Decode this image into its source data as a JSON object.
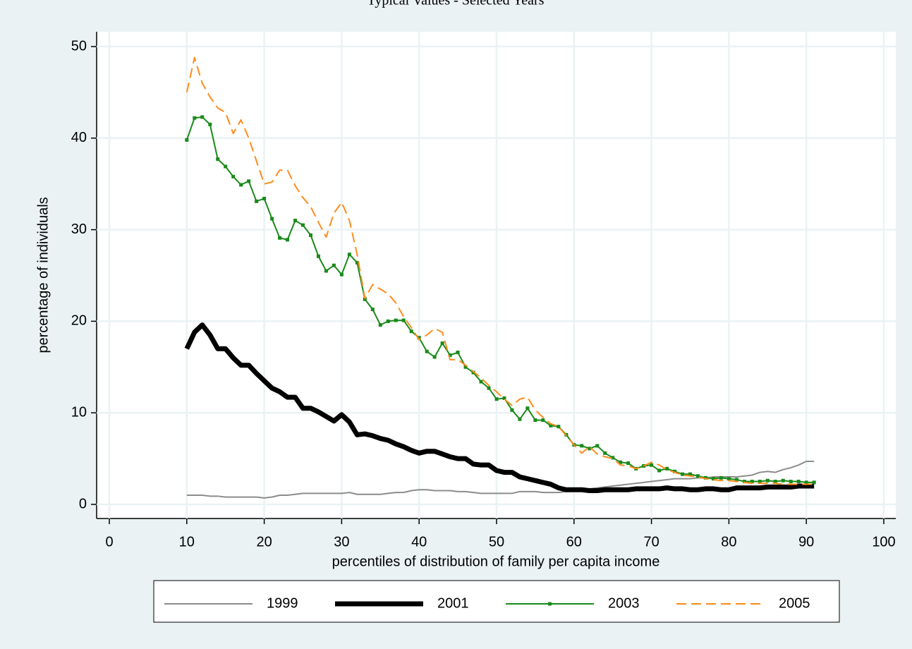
{
  "chart_data": {
    "type": "line",
    "title": "Typical Values - Selected Years",
    "xlabel": "percentiles of distribution of family per capita income",
    "ylabel": "percentage of individuals",
    "x": [
      10,
      11,
      12,
      13,
      14,
      15,
      16,
      17,
      18,
      19,
      20,
      21,
      22,
      23,
      24,
      25,
      26,
      27,
      28,
      29,
      30,
      31,
      32,
      33,
      34,
      35,
      36,
      37,
      38,
      39,
      40,
      41,
      42,
      43,
      44,
      45,
      46,
      47,
      48,
      49,
      50,
      51,
      52,
      53,
      54,
      55,
      56,
      57,
      58,
      59,
      60,
      61,
      62,
      63,
      64,
      65,
      66,
      67,
      68,
      69,
      70,
      71,
      72,
      73,
      74,
      75,
      76,
      77,
      78,
      79,
      80,
      81,
      82,
      83,
      84,
      85,
      86,
      87,
      88,
      89,
      90,
      91
    ],
    "series": [
      {
        "name": "1999",
        "color": "#8c8c8c",
        "width": 2,
        "dash": false,
        "markers": false,
        "values": [
          1.0,
          1.0,
          1.0,
          0.9,
          0.9,
          0.8,
          0.8,
          0.8,
          0.8,
          0.8,
          0.7,
          0.8,
          1.0,
          1.0,
          1.1,
          1.2,
          1.2,
          1.2,
          1.2,
          1.2,
          1.2,
          1.3,
          1.1,
          1.1,
          1.1,
          1.1,
          1.2,
          1.3,
          1.3,
          1.5,
          1.6,
          1.6,
          1.5,
          1.5,
          1.5,
          1.4,
          1.4,
          1.3,
          1.2,
          1.2,
          1.2,
          1.2,
          1.2,
          1.4,
          1.4,
          1.4,
          1.3,
          1.3,
          1.3,
          1.4,
          1.5,
          1.6,
          1.7,
          1.8,
          1.9,
          2.0,
          2.1,
          2.2,
          2.3,
          2.4,
          2.5,
          2.6,
          2.7,
          2.8,
          2.8,
          2.8,
          2.9,
          2.9,
          3.0,
          3.0,
          3.0,
          3.0,
          3.1,
          3.2,
          3.5,
          3.6,
          3.5,
          3.8,
          4.0,
          4.3,
          4.7,
          4.7
        ]
      },
      {
        "name": "2001",
        "color": "#000000",
        "width": 7,
        "dash": false,
        "markers": false,
        "values": [
          17.0,
          18.8,
          19.6,
          18.5,
          17.0,
          17.0,
          16.0,
          15.2,
          15.2,
          14.3,
          13.5,
          12.7,
          12.3,
          11.7,
          11.7,
          10.5,
          10.5,
          10.1,
          9.6,
          9.1,
          9.8,
          9.0,
          7.6,
          7.7,
          7.5,
          7.2,
          7.0,
          6.6,
          6.3,
          5.9,
          5.6,
          5.8,
          5.8,
          5.5,
          5.2,
          5.0,
          5.0,
          4.4,
          4.3,
          4.3,
          3.7,
          3.5,
          3.5,
          3.0,
          2.8,
          2.6,
          2.4,
          2.2,
          1.8,
          1.6,
          1.6,
          1.6,
          1.5,
          1.5,
          1.6,
          1.6,
          1.6,
          1.6,
          1.7,
          1.7,
          1.7,
          1.7,
          1.8,
          1.7,
          1.7,
          1.6,
          1.6,
          1.7,
          1.7,
          1.6,
          1.6,
          1.8,
          1.8,
          1.8,
          1.8,
          1.9,
          1.9,
          1.9,
          1.9,
          2.0,
          2.0,
          2.0
        ]
      },
      {
        "name": "2003",
        "color": "#1a8a1a",
        "width": 2,
        "dash": false,
        "markers": true,
        "values": [
          39.8,
          42.2,
          42.3,
          41.5,
          37.7,
          36.9,
          35.8,
          34.9,
          35.3,
          33.1,
          33.4,
          31.2,
          29.1,
          28.9,
          31.0,
          30.5,
          29.4,
          27.1,
          25.5,
          26.1,
          25.1,
          27.3,
          26.4,
          22.4,
          21.3,
          19.6,
          20.0,
          20.1,
          20.1,
          18.9,
          18.2,
          16.7,
          16.1,
          17.6,
          16.3,
          16.6,
          15.0,
          14.4,
          13.4,
          12.7,
          11.5,
          11.6,
          10.3,
          9.3,
          10.5,
          9.2,
          9.2,
          8.6,
          8.5,
          7.6,
          6.5,
          6.4,
          6.1,
          6.4,
          5.6,
          5.1,
          4.6,
          4.5,
          3.9,
          4.2,
          4.3,
          3.7,
          3.9,
          3.6,
          3.3,
          3.3,
          3.1,
          2.9,
          2.8,
          2.9,
          2.8,
          2.7,
          2.5,
          2.5,
          2.5,
          2.6,
          2.5,
          2.6,
          2.5,
          2.5,
          2.4,
          2.4
        ]
      },
      {
        "name": "2005",
        "color": "#ff8c1a",
        "width": 2,
        "dash": true,
        "markers": false,
        "values": [
          45.0,
          48.8,
          46.0,
          44.5,
          43.3,
          42.8,
          40.5,
          42.0,
          40.0,
          37.5,
          35.0,
          35.2,
          36.5,
          36.5,
          34.8,
          33.5,
          32.5,
          30.8,
          29.2,
          31.8,
          33.0,
          31.0,
          27.3,
          22.5,
          24.0,
          23.5,
          23.0,
          22.0,
          20.5,
          19.3,
          18.0,
          18.5,
          19.2,
          18.8,
          15.8,
          15.8,
          15.2,
          14.5,
          13.8,
          13.0,
          12.3,
          11.5,
          10.8,
          11.5,
          11.7,
          10.3,
          9.5,
          8.8,
          8.5,
          7.5,
          6.5,
          5.6,
          6.3,
          5.5,
          5.2,
          5.0,
          4.3,
          4.2,
          3.9,
          4.2,
          4.6,
          4.3,
          3.8,
          3.5,
          3.2,
          3.1,
          3.0,
          2.8,
          2.7,
          2.6,
          2.6,
          2.5,
          2.4,
          2.3,
          2.3,
          2.3,
          2.3,
          2.2,
          2.2,
          2.2,
          2.2,
          2.2
        ]
      }
    ],
    "xlim": [
      0,
      100
    ],
    "xticks": [
      0,
      10,
      20,
      30,
      40,
      50,
      60,
      70,
      80,
      90,
      100
    ],
    "ylim": [
      0,
      50
    ],
    "yticks": [
      0,
      10,
      20,
      30,
      40,
      50
    ],
    "grid": true,
    "legend": "bottom"
  }
}
